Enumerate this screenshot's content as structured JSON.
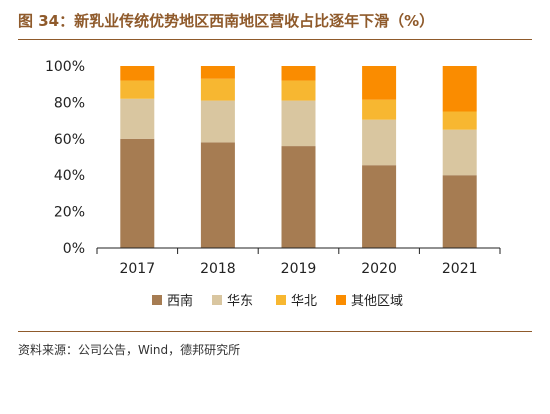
{
  "figure": {
    "title": "图 34：新乳业传统优势地区西南地区营收占比逐年下滑（%）",
    "source": "资料来源：公司公告，Wind，德邦研究所"
  },
  "chart_data": {
    "type": "bar",
    "stacked": true,
    "categories": [
      "2017",
      "2018",
      "2019",
      "2020",
      "2021"
    ],
    "series": [
      {
        "name": "西南",
        "color": "#a67c52",
        "values": [
          60,
          58,
          56,
          45.5,
          40
        ]
      },
      {
        "name": "华东",
        "color": "#d9c6a0",
        "values": [
          22,
          23,
          25,
          25,
          25
        ]
      },
      {
        "name": "华北",
        "color": "#f7b731",
        "values": [
          10,
          12,
          11,
          11,
          10
        ]
      },
      {
        "name": "其他区域",
        "color": "#fa8c00",
        "values": [
          8,
          7,
          8,
          18.5,
          25
        ]
      }
    ],
    "ylim": [
      0,
      100
    ],
    "yticks": [
      "0%",
      "20%",
      "40%",
      "60%",
      "80%",
      "100%"
    ],
    "grid": false,
    "legend_position": "bottom"
  }
}
